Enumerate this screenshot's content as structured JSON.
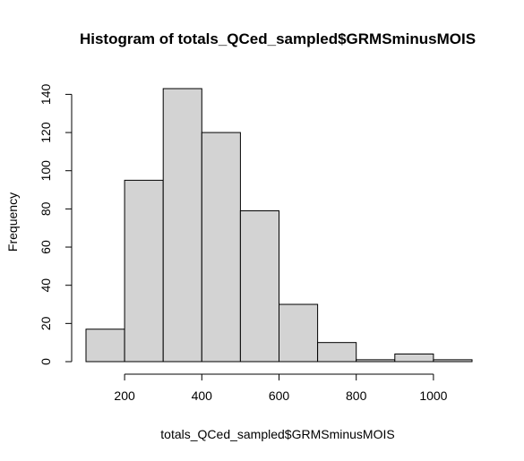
{
  "chart_data": {
    "type": "bar",
    "title": "Histogram of totals_QCed_sampled$GRMSminusMOIS",
    "xlabel": "totals_QCed_sampled$GRMSminusMOIS",
    "ylabel": "Frequency",
    "bins": [
      {
        "from": 100,
        "to": 200,
        "count": 17
      },
      {
        "from": 200,
        "to": 300,
        "count": 95
      },
      {
        "from": 300,
        "to": 400,
        "count": 143
      },
      {
        "from": 400,
        "to": 500,
        "count": 120
      },
      {
        "from": 500,
        "to": 600,
        "count": 79
      },
      {
        "from": 600,
        "to": 700,
        "count": 30
      },
      {
        "from": 700,
        "to": 800,
        "count": 10
      },
      {
        "from": 800,
        "to": 900,
        "count": 1
      },
      {
        "from": 900,
        "to": 1000,
        "count": 4
      },
      {
        "from": 1000,
        "to": 1100,
        "count": 1
      }
    ],
    "xlim": [
      100,
      1100
    ],
    "ylim": [
      0,
      143
    ],
    "x_ticks": [
      200,
      400,
      600,
      800,
      1000
    ],
    "y_ticks": [
      0,
      20,
      40,
      60,
      80,
      100,
      120,
      140
    ],
    "bar_color": "#d3d3d3",
    "edge_color": "#000000",
    "grid": false
  }
}
